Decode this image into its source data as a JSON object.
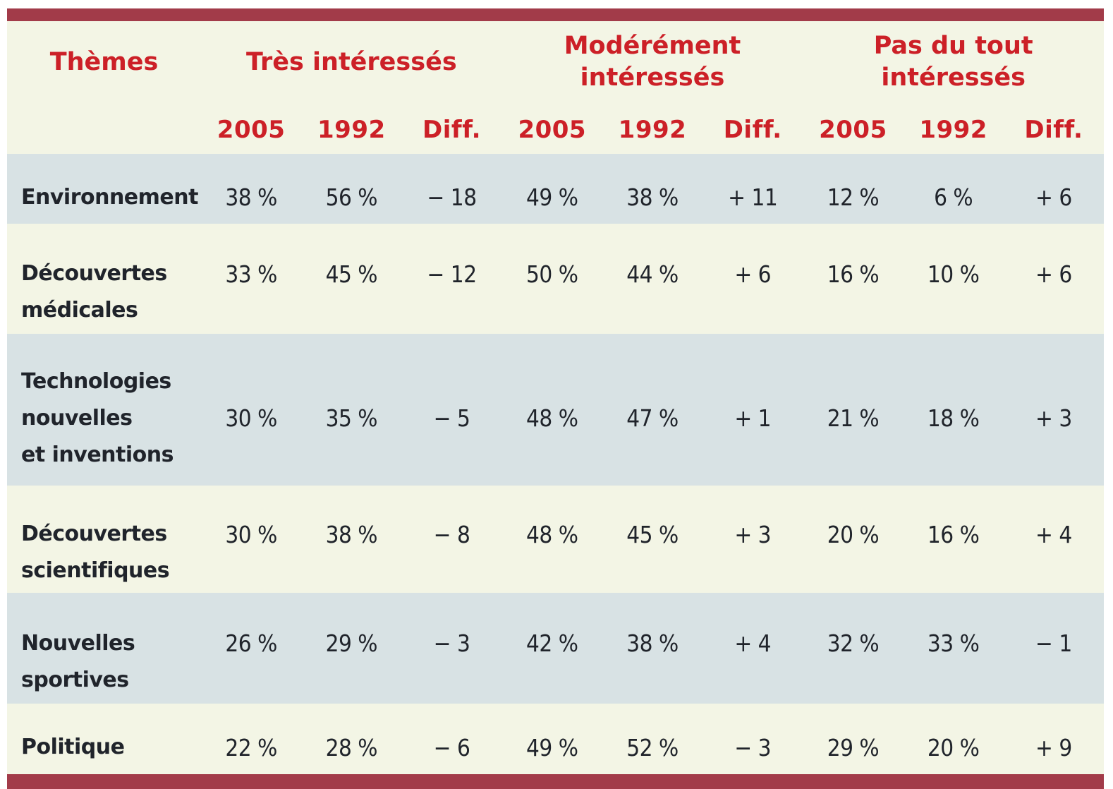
{
  "chart_data": {
    "type": "table",
    "column_groups": [
      "Très intéressés",
      "Modérément intéressés",
      "Pas du tout intéressés"
    ],
    "columns": [
      "Thèmes",
      "2005",
      "1992",
      "Diff.",
      "2005",
      "1992",
      "Diff.",
      "2005",
      "1992",
      "Diff."
    ],
    "rows": [
      [
        "Environnement",
        "38 %",
        "56 %",
        "− 18",
        "49 %",
        "38 %",
        "+ 11",
        "12 %",
        "6 %",
        "+ 6"
      ],
      [
        "Découvertes médicales",
        "33 %",
        "45 %",
        "− 12",
        "50 %",
        "44 %",
        "+ 6",
        "16 %",
        "10 %",
        "+ 6"
      ],
      [
        "Technologies nouvelles et inventions",
        "30 %",
        "35 %",
        "− 5",
        "48 %",
        "47 %",
        "+ 1",
        "21 %",
        "18 %",
        "+ 3"
      ],
      [
        "Découvertes scientifiques",
        "30 %",
        "38 %",
        "− 8",
        "48 %",
        "45 %",
        "+ 3",
        "20 %",
        "16 %",
        "+ 4"
      ],
      [
        "Nouvelles sportives",
        "26 %",
        "29 %",
        "− 3",
        "42 %",
        "38 %",
        "+ 4",
        "32 %",
        "33 %",
        "− 1"
      ],
      [
        "Politique",
        "22 %",
        "28 %",
        "− 6",
        "49 %",
        "52 %",
        "− 3",
        "29 %",
        "20 %",
        "+ 9"
      ]
    ]
  },
  "header": {
    "themes": "Thèmes",
    "sub": [
      "2005",
      "1992",
      "Diff."
    ]
  },
  "theme_lines": [
    [
      "Environnement"
    ],
    [
      "Découvertes",
      "médicales"
    ],
    [
      "Technologies",
      "nouvelles",
      "et inventions"
    ],
    [
      "Découvertes",
      "scientifiques"
    ],
    [
      "Nouvelles",
      "sportives"
    ],
    [
      "Politique"
    ]
  ],
  "colors": {
    "border_bar_red": "#a23b49",
    "header_text_red": "#cc2027",
    "row_stripe_blue": "#d8e2e4",
    "background_cream": "#f3f5e5",
    "body_text_dark": "#20242b"
  }
}
